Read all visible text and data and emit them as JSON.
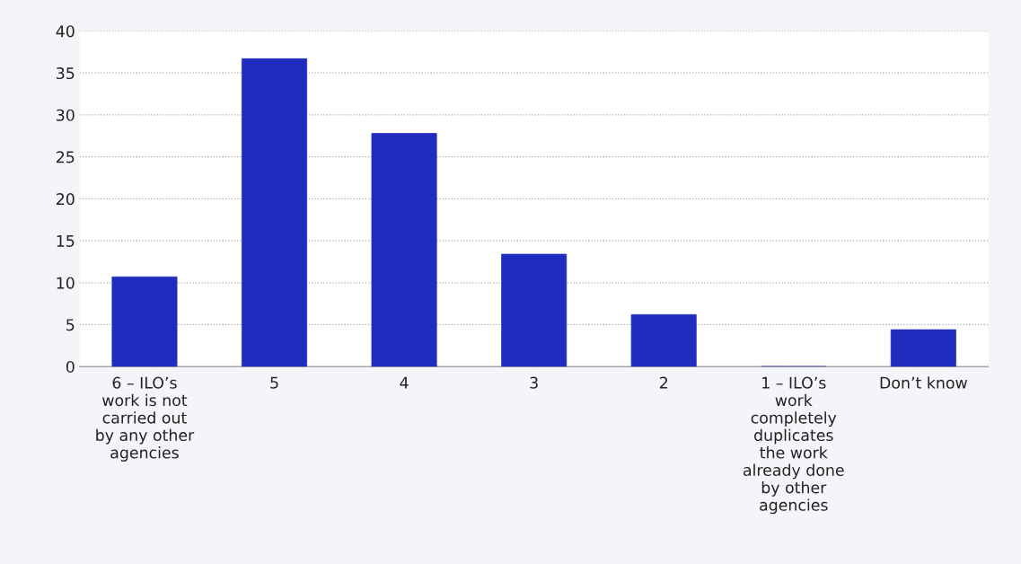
{
  "chart_data": {
    "type": "bar",
    "categories": [
      "6 – ILO’s work is not carried out by any other agencies",
      "5",
      "4",
      "3",
      "2",
      "1 – ILO’s work completely duplicates the work already done by other agencies",
      "Don’t know"
    ],
    "values": [
      10.7,
      36.7,
      27.8,
      13.4,
      6.2,
      0,
      4.4
    ],
    "color": "#1f2dbf",
    "ylim": [
      0,
      40
    ],
    "yticks": [
      0,
      5,
      10,
      15,
      20,
      25,
      30,
      35,
      40
    ],
    "grid": "y",
    "legend": false
  }
}
